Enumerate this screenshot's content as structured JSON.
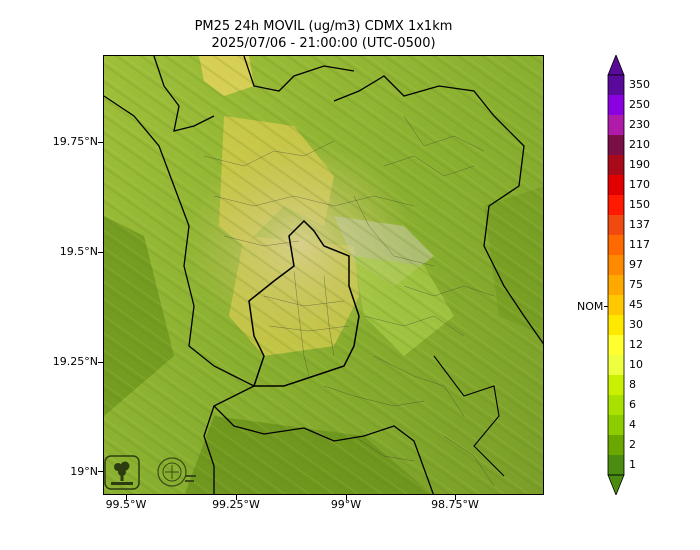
{
  "title": {
    "line1": "PM25 24h MOVIL (ug/m3) CDMX 1x1km",
    "line2": "2025/07/06 - 21:00:00 (UTC-0500)"
  },
  "axes": {
    "y_labels": [
      "19.75°N",
      "19.5°N",
      "19.25°N",
      "19°N"
    ],
    "x_labels": [
      "99.5°W",
      "99.25°W",
      "99°W",
      "98.75°W"
    ]
  },
  "colorbar": {
    "labels": [
      "350",
      "250",
      "230",
      "210",
      "190",
      "170",
      "150",
      "137",
      "117",
      "97",
      "75",
      "45",
      "30",
      "12",
      "10",
      "8",
      "6",
      "4",
      "2",
      "1"
    ],
    "colors": [
      "#5a0a9a",
      "#8a00e0",
      "#b01aa8",
      "#7a0f45",
      "#a80a1a",
      "#e00000",
      "#ff1a00",
      "#f04a10",
      "#ff6a00",
      "#ff8a00",
      "#ffa800",
      "#ffc800",
      "#ffe800",
      "#ffff30",
      "#eeff40",
      "#c8f000",
      "#a8e000",
      "#8ccc00",
      "#6aa800",
      "#4a8c10"
    ],
    "nom_label": "NOM",
    "nom_value": 45
  },
  "logos": {
    "left": "sedema-logo",
    "right": "cdmx-seal-logo"
  }
}
